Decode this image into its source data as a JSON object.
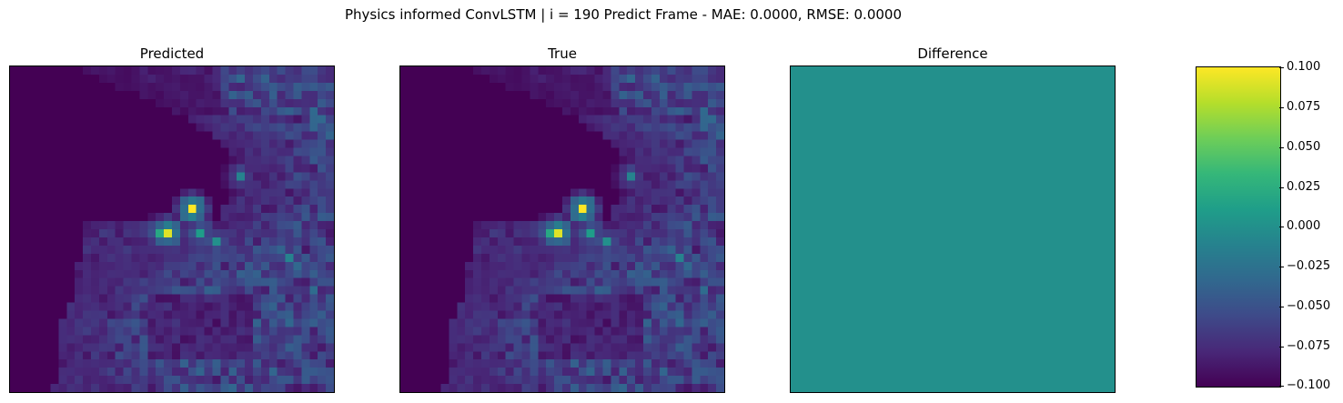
{
  "figure": {
    "title": "Physics informed ConvLSTM | i = 190 Predict Frame - MAE: 0.0000, RMSE: 0.0000"
  },
  "panels": [
    {
      "id": "predicted",
      "title": "Predicted"
    },
    {
      "id": "true",
      "title": "True"
    },
    {
      "id": "difference",
      "title": "Difference"
    }
  ],
  "colormap": {
    "name": "viridis",
    "stops": [
      "#440154",
      "#482878",
      "#3e4a89",
      "#31688e",
      "#26828e",
      "#1f9e89",
      "#35b779",
      "#6ece58",
      "#b5de2b",
      "#fde725"
    ]
  },
  "colorbar": {
    "ticks": [
      "0.100",
      "0.075",
      "0.050",
      "0.025",
      "0.000",
      "−0.025",
      "−0.050",
      "−0.075",
      "−0.100"
    ]
  },
  "chart_data": {
    "type": "heatmap",
    "title": "Physics informed ConvLSTM | i = 190 Predict Frame - MAE: 0.0000, RMSE: 0.0000",
    "grid_size": [
      40,
      40
    ],
    "subplots": [
      "Predicted",
      "True",
      "Difference"
    ],
    "hotspots": [
      {
        "row": 17,
        "col": 22,
        "value": 1.0
      },
      {
        "row": 20,
        "col": 19,
        "value": 0.95
      },
      {
        "row": 20,
        "col": 18,
        "value": 0.6
      },
      {
        "row": 20,
        "col": 23,
        "value": 0.55
      },
      {
        "row": 21,
        "col": 25,
        "value": 0.5
      },
      {
        "row": 13,
        "col": 28,
        "value": 0.45
      },
      {
        "row": 23,
        "col": 34,
        "value": 0.45
      }
    ],
    "difference_value": 0.0,
    "colorbar_range": [
      -0.1,
      0.1
    ],
    "colorbar_ticks": [
      -0.1,
      -0.075,
      -0.05,
      -0.025,
      0.0,
      0.025,
      0.05,
      0.075,
      0.1
    ]
  }
}
